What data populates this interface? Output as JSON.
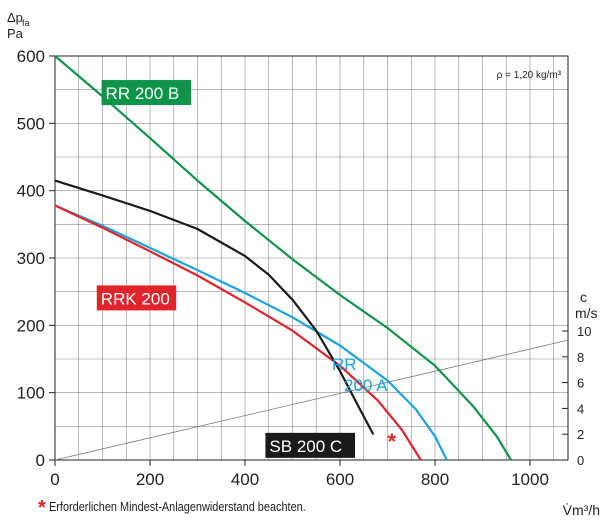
{
  "chart_data": {
    "type": "line",
    "y_label_top": "Δp",
    "y_label_sub": "fa",
    "y_unit": "Pa",
    "x_label": "V̇m³/h",
    "density_note": "ρ = 1,20 kg/m³",
    "xlim": [
      0,
      1080
    ],
    "ylim": [
      0,
      600
    ],
    "x_ticks": [
      0,
      200,
      400,
      600,
      800,
      1000
    ],
    "y_ticks": [
      0,
      100,
      200,
      300,
      400,
      500,
      600
    ],
    "velocity_axis": {
      "label": "c",
      "unit": "m/s",
      "ticks": [
        "0",
        "2",
        "4",
        "6",
        "8",
        "10"
      ]
    },
    "velocity_line": {
      "x": [
        0,
        1080
      ],
      "y": [
        0,
        178
      ]
    },
    "grid": true,
    "series": [
      {
        "name": "RR 200 B",
        "color": "#0e9448",
        "x": [
          0,
          100,
          200,
          300,
          400,
          500,
          600,
          700,
          800,
          880,
          930,
          960
        ],
        "y": [
          600,
          540,
          478,
          415,
          355,
          298,
          245,
          196,
          140,
          80,
          35,
          0
        ]
      },
      {
        "name": "RR 200 A",
        "color": "#1aa3df",
        "x": [
          0,
          100,
          200,
          300,
          400,
          500,
          600,
          700,
          760,
          800,
          825
        ],
        "y": [
          378,
          348,
          315,
          282,
          248,
          212,
          170,
          118,
          75,
          35,
          0
        ]
      },
      {
        "name": "RRK 200",
        "color": "#e1232b",
        "x": [
          0,
          100,
          200,
          300,
          400,
          500,
          600,
          680,
          730,
          770
        ],
        "y": [
          378,
          345,
          310,
          274,
          234,
          192,
          140,
          88,
          45,
          0
        ]
      },
      {
        "name": "SB 200 C",
        "color": "#1a1a1a",
        "x": [
          0,
          100,
          200,
          300,
          400,
          450,
          500,
          550,
          600,
          640,
          670
        ],
        "y": [
          415,
          393,
          370,
          343,
          303,
          275,
          238,
          192,
          132,
          78,
          38
        ]
      }
    ],
    "labels": [
      {
        "series": "RR 200 B",
        "lines": [
          "RR 200 B"
        ],
        "color": "#0e9448",
        "style": "box",
        "x": 98,
        "y": 545
      },
      {
        "series": "RRK 200",
        "lines": [
          "RRK 200"
        ],
        "color": "#e1232b",
        "style": "box",
        "x": 88,
        "y": 240
      },
      {
        "series": "SB 200 C",
        "lines": [
          "SB 200 C"
        ],
        "color": "#1a1a1a",
        "style": "box",
        "x": 443,
        "y": 21
      },
      {
        "series": "RR 200 A",
        "lines": [
          "RR",
          "200 A"
        ],
        "color": "#1aa3df",
        "style": "text",
        "x": 600,
        "y": 134
      }
    ],
    "annotation_star": {
      "x": 700,
      "y": 25
    }
  },
  "footnote": {
    "marker": "*",
    "text": "Erforderlichen Mindest-Anlagenwiderstand beachten."
  }
}
